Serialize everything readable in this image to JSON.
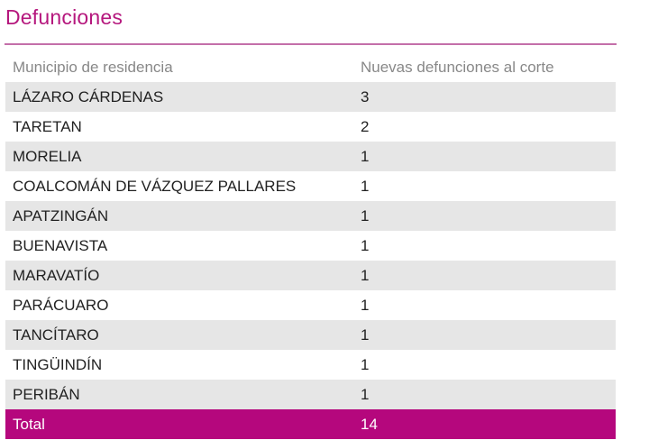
{
  "title": "Defunciones",
  "table": {
    "headers": {
      "municipality": "Municipio de residencia",
      "new_deaths": "Nuevas defunciones al corte"
    },
    "rows": [
      {
        "municipality": "LÁZARO CÁRDENAS",
        "new_deaths": "3"
      },
      {
        "municipality": "TARETAN",
        "new_deaths": "2"
      },
      {
        "municipality": "MORELIA",
        "new_deaths": "1"
      },
      {
        "municipality": "COALCOMÁN DE VÁZQUEZ PALLARES",
        "new_deaths": "1"
      },
      {
        "municipality": "APATZINGÁN",
        "new_deaths": "1"
      },
      {
        "municipality": "BUENAVISTA",
        "new_deaths": "1"
      },
      {
        "municipality": "MARAVATÍO",
        "new_deaths": "1"
      },
      {
        "municipality": "PARÁCUARO",
        "new_deaths": "1"
      },
      {
        "municipality": "TANCÍTARO",
        "new_deaths": "1"
      },
      {
        "municipality": "TINGÜINDÍN",
        "new_deaths": "1"
      },
      {
        "municipality": "PERIBÁN",
        "new_deaths": "1"
      }
    ],
    "total": {
      "label": "Total",
      "value": "14"
    }
  },
  "colors": {
    "accent": "#b5177d",
    "total_row": "#b5077d",
    "stripe": "#e6e6e6",
    "header_text": "#888888"
  }
}
